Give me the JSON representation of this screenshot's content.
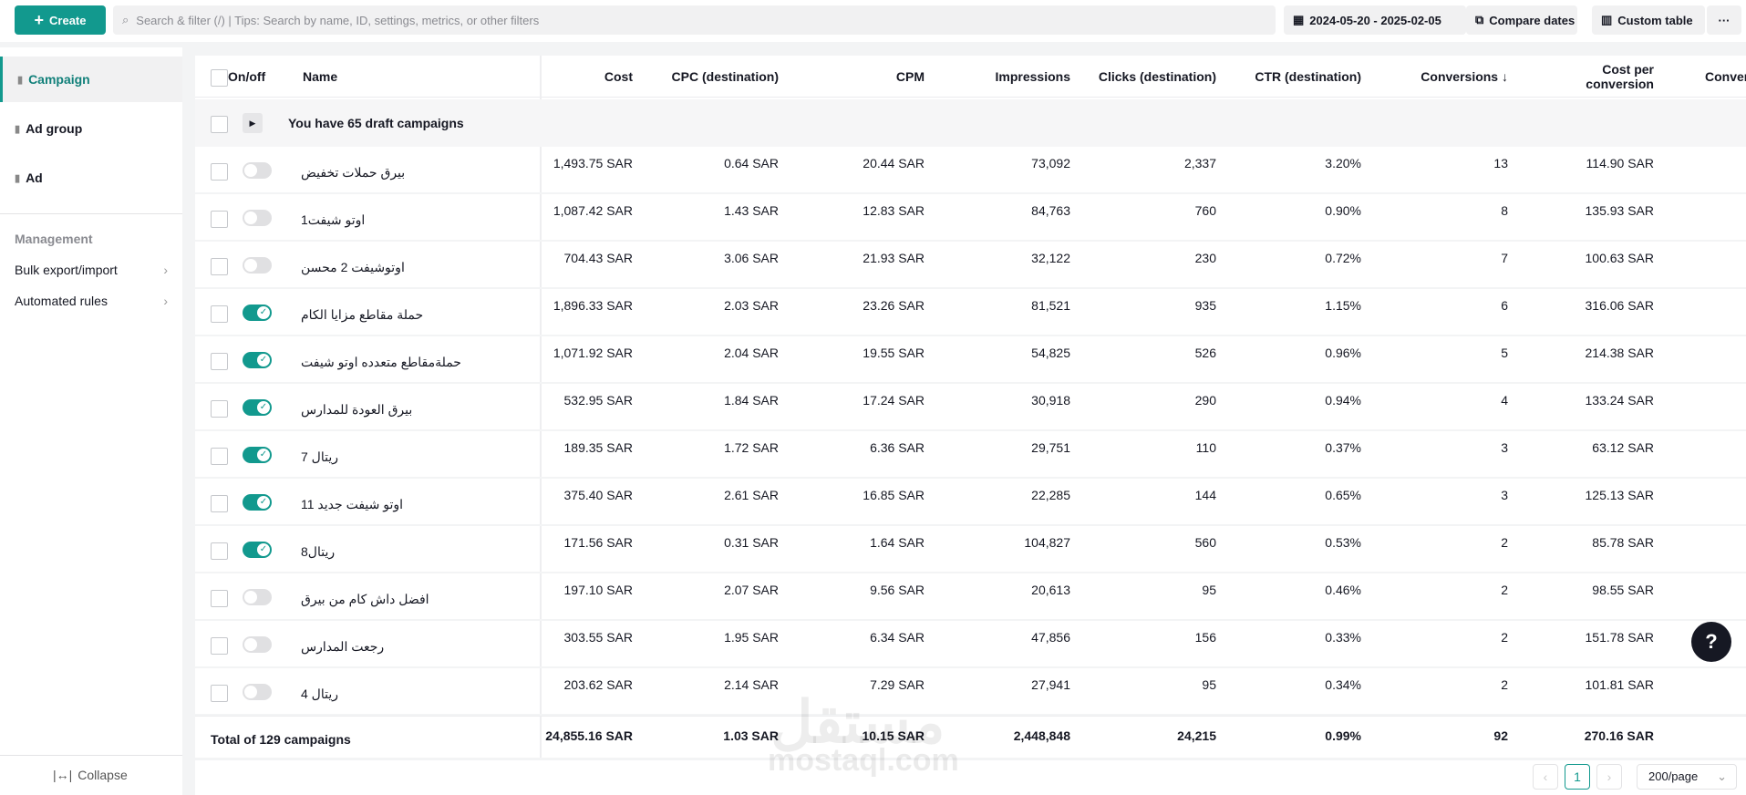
{
  "toolbar": {
    "create": "Create",
    "search": "Search & filter (/) | Tips: Search by name, ID, settings, metrics, or other filters",
    "date_range": "2024-05-20 - 2025-02-05",
    "compare": "Compare dates",
    "custom": "Custom table",
    "more": "···"
  },
  "sidebar": {
    "levels": [
      "Campaign",
      "Ad group",
      "Ad"
    ],
    "section": "Management",
    "links": [
      "Bulk export/import",
      "Automated rules"
    ],
    "collapse": "Collapse"
  },
  "table": {
    "headers": [
      "On/off",
      "Name",
      "Cost",
      "CPC (destination)",
      "CPM",
      "Impressions",
      "Clicks (destination)",
      "CTR (destination)",
      "Conversions ↓",
      "Cost per conversion",
      "Conver"
    ],
    "draft": "You have 65 draft campaigns",
    "rows": [
      {
        "on": false,
        "cells": [
          "بيرق حملات تخفيض",
          "1,493.75 SAR",
          "0.64 SAR",
          "20.44 SAR",
          "73,092",
          "2,337",
          "3.20%",
          "13",
          "114.90 SAR"
        ]
      },
      {
        "on": false,
        "cells": [
          "اوتو شيفت1",
          "1,087.42 SAR",
          "1.43 SAR",
          "12.83 SAR",
          "84,763",
          "760",
          "0.90%",
          "8",
          "135.93 SAR"
        ]
      },
      {
        "on": false,
        "cells": [
          "اوتوشيفت 2 محسن",
          "704.43 SAR",
          "3.06 SAR",
          "21.93 SAR",
          "32,122",
          "230",
          "0.72%",
          "7",
          "100.63 SAR"
        ]
      },
      {
        "on": true,
        "cells": [
          "حملة مقاطع مزايا الكام",
          "1,896.33 SAR",
          "2.03 SAR",
          "23.26 SAR",
          "81,521",
          "935",
          "1.15%",
          "6",
          "316.06 SAR"
        ]
      },
      {
        "on": true,
        "cells": [
          "حملةمقاطع متعدده اوتو شيفت",
          "1,071.92 SAR",
          "2.04 SAR",
          "19.55 SAR",
          "54,825",
          "526",
          "0.96%",
          "5",
          "214.38 SAR"
        ]
      },
      {
        "on": true,
        "cells": [
          "بيرق العودة للمدارس",
          "532.95 SAR",
          "1.84 SAR",
          "17.24 SAR",
          "30,918",
          "290",
          "0.94%",
          "4",
          "133.24 SAR"
        ]
      },
      {
        "on": true,
        "cells": [
          "ريتال 7",
          "189.35 SAR",
          "1.72 SAR",
          "6.36 SAR",
          "29,751",
          "110",
          "0.37%",
          "3",
          "63.12 SAR"
        ]
      },
      {
        "on": true,
        "cells": [
          "اوتو شيفت جديد 11",
          "375.40 SAR",
          "2.61 SAR",
          "16.85 SAR",
          "22,285",
          "144",
          "0.65%",
          "3",
          "125.13 SAR"
        ]
      },
      {
        "on": true,
        "cells": [
          "ريتال8",
          "171.56 SAR",
          "0.31 SAR",
          "1.64 SAR",
          "104,827",
          "560",
          "0.53%",
          "2",
          "85.78 SAR"
        ]
      },
      {
        "on": false,
        "cells": [
          "افضل داش كام من بيرق",
          "197.10 SAR",
          "2.07 SAR",
          "9.56 SAR",
          "20,613",
          "95",
          "0.46%",
          "2",
          "98.55 SAR"
        ]
      },
      {
        "on": false,
        "cells": [
          "رجعت المدارس",
          "303.55 SAR",
          "1.95 SAR",
          "6.34 SAR",
          "47,856",
          "156",
          "0.33%",
          "2",
          "151.78 SAR"
        ]
      },
      {
        "on": false,
        "cells": [
          "ريتال 4",
          "203.62 SAR",
          "2.14 SAR",
          "7.29 SAR",
          "27,941",
          "95",
          "0.34%",
          "2",
          "101.81 SAR"
        ]
      }
    ],
    "total": [
      "Total of 129 campaigns",
      "24,855.16 SAR",
      "1.03 SAR",
      "10.15 SAR",
      "2,448,848",
      "24,215",
      "0.99%",
      "92",
      "270.16 SAR"
    ]
  },
  "pagination": {
    "page": "1",
    "per_page": "200/page"
  },
  "watermark": [
    "مستقل",
    "mostaql.com"
  ]
}
